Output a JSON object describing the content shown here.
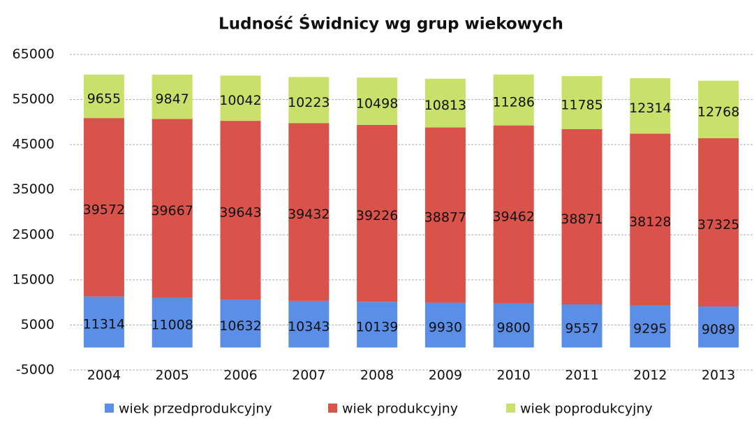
{
  "chart_data": {
    "type": "stacked_bar",
    "title": "Ludność Świdnicy wg grup wiekowych",
    "categories": [
      "2004",
      "2005",
      "2006",
      "2007",
      "2008",
      "2009",
      "2010",
      "2011",
      "2012",
      "2013"
    ],
    "series": [
      {
        "name": "wiek przedprodukcyjny",
        "color": "#5b8ee6",
        "values": [
          11314,
          11008,
          10632,
          10343,
          10139,
          9930,
          9800,
          9557,
          9295,
          9089
        ]
      },
      {
        "name": "wiek produkcyjny",
        "color": "#d9534b",
        "values": [
          39572,
          39667,
          39643,
          39432,
          39226,
          38877,
          39462,
          38871,
          38128,
          37325
        ]
      },
      {
        "name": "wiek poprodukcyjny",
        "color": "#c9e06a",
        "values": [
          9655,
          9847,
          10042,
          10223,
          10498,
          10813,
          11286,
          11785,
          12314,
          12768
        ]
      }
    ],
    "ylim": [
      -5000,
      65000
    ],
    "yticks": [
      -5000,
      5000,
      15000,
      25000,
      35000,
      45000,
      55000,
      65000
    ],
    "grid": true,
    "legend": "bottom"
  }
}
